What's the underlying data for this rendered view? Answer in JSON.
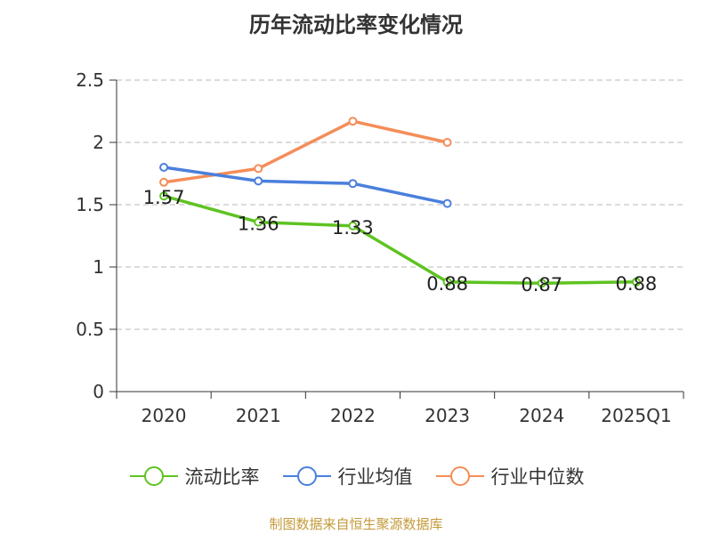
{
  "chart_data": {
    "type": "line",
    "title": "历年流动比率变化情况",
    "categories": [
      "2020",
      "2021",
      "2022",
      "2023",
      "2024",
      "2025Q1"
    ],
    "ylim": [
      0,
      2.5
    ],
    "yticks": [
      0,
      0.5,
      1,
      1.5,
      2,
      2.5
    ],
    "ytick_labels": [
      "0",
      "0.5",
      "1",
      "1.5",
      "2",
      "2.5"
    ],
    "grid": true,
    "legend_position": "bottom-center",
    "series": [
      {
        "name": "流动比率",
        "color": "#5ec321",
        "values": [
          1.57,
          1.36,
          1.33,
          0.88,
          0.87,
          0.88
        ],
        "labels": [
          "1.57",
          "1.36",
          "1.33",
          "0.88",
          "0.87",
          "0.88"
        ]
      },
      {
        "name": "行业均值",
        "color": "#4a7fdc",
        "values": [
          1.8,
          1.69,
          1.67,
          1.51,
          null,
          null
        ]
      },
      {
        "name": "行业中位数",
        "color": "#f58d58",
        "values": [
          1.68,
          1.79,
          2.17,
          2.0,
          null,
          null
        ]
      }
    ]
  },
  "source": "制图数据来自恒生聚源数据库"
}
